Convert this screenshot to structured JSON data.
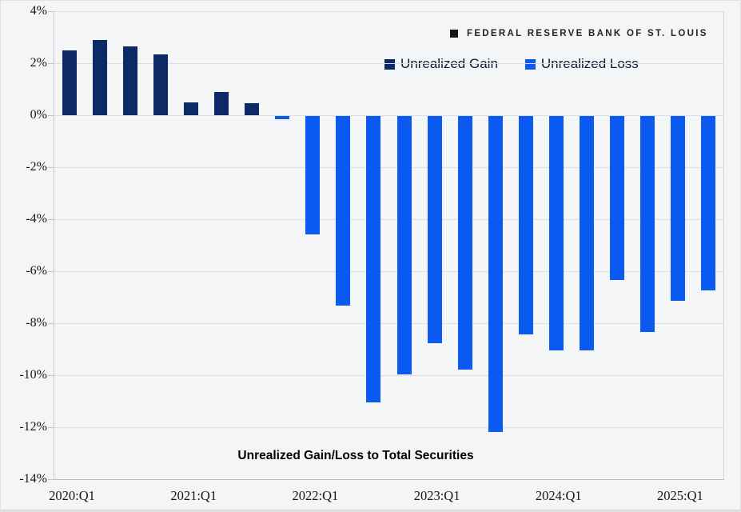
{
  "page": {
    "background": "#f4f5f6"
  },
  "branding": {
    "label": "FEDERAL RESERVE BANK OF ST. LOUIS",
    "marker": "square-icon",
    "marker_color": "#151515"
  },
  "legend": {
    "items": [
      {
        "label": "Unrealized Gain",
        "color": "#0d2a66"
      },
      {
        "label": "Unrealized Loss",
        "color": "#0b5bf2"
      }
    ]
  },
  "chart_data": {
    "type": "bar",
    "title": "Unrealized Gain/Loss to Total Securities",
    "xlabel": "",
    "ylabel": "",
    "ylim": [
      -14,
      4
    ],
    "y_tick_step": 2,
    "y_tick_labels": [
      "4%",
      "2%",
      "0%",
      "-2%",
      "-4%",
      "-6%",
      "-8%",
      "-10%",
      "-12%",
      "-14%"
    ],
    "grid": true,
    "legend_position": "top-center",
    "bar_colors_rule": "positive values use gain color, negative values use loss color",
    "gain_color": "#0d2a66",
    "loss_color": "#0b5bf2",
    "categories": [
      "2020:Q1",
      "2020:Q2",
      "2020:Q3",
      "2020:Q4",
      "2021:Q1",
      "2021:Q2",
      "2021:Q3",
      "2021:Q4",
      "2022:Q1",
      "2022:Q2",
      "2022:Q3",
      "2022:Q4",
      "2023:Q1",
      "2023:Q2",
      "2023:Q3",
      "2023:Q4",
      "2024:Q1",
      "2024:Q2",
      "2024:Q3",
      "2024:Q4",
      "2025:Q1",
      "2025:Q2"
    ],
    "values": [
      2.5,
      2.9,
      2.65,
      2.35,
      0.5,
      0.9,
      0.46,
      -0.13,
      -4.55,
      -7.3,
      -11.0,
      -9.95,
      -8.75,
      -9.75,
      -12.15,
      -8.4,
      -9.0,
      -9.0,
      -6.3,
      -8.3,
      -7.1,
      -6.7
    ],
    "x_axis_labels": [
      {
        "index": 0,
        "label": "2020:Q1"
      },
      {
        "index": 4,
        "label": "2021:Q1"
      },
      {
        "index": 8,
        "label": "2022:Q1"
      },
      {
        "index": 12,
        "label": "2023:Q1"
      },
      {
        "index": 16,
        "label": "2024:Q1"
      },
      {
        "index": 20,
        "label": "2025:Q1"
      }
    ]
  }
}
